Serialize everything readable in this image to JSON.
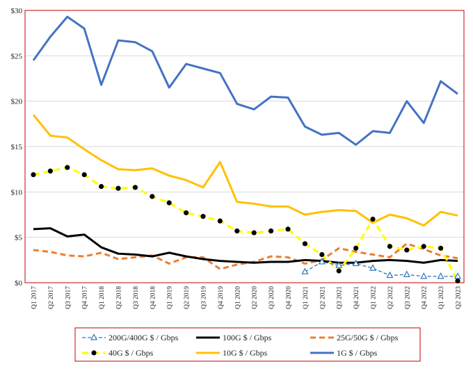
{
  "chart_data": {
    "type": "line",
    "title": "",
    "xlabel": "",
    "ylabel": "",
    "ylim": [
      0,
      30
    ],
    "y_ticks": [
      "$0",
      "$5",
      "$10",
      "$15",
      "$20",
      "$25",
      "$30"
    ],
    "grid": "horizontal",
    "legend_position": "bottom",
    "categories": [
      "Q1 2017",
      "Q2 2017",
      "Q3 2017",
      "Q4 2017",
      "Q1 2018",
      "Q2 2018",
      "Q3 2018",
      "Q4 2018",
      "Q1 2019",
      "Q2 2019",
      "Q3 2019",
      "Q4 2019",
      "Q1 2020",
      "Q2 2020",
      "Q3 2020",
      "Q4 2020",
      "Q1 2021",
      "Q2 2021",
      "Q3 2021",
      "Q4 2021",
      "Q1 2022",
      "Q2 2022",
      "Q3 2022",
      "Q4 2022",
      "Q1 2023",
      "Q2 2023"
    ],
    "series": [
      {
        "name": "200G/400G $ / Gbps",
        "color": "#2e75b6",
        "style": "dashed-triangle",
        "values": [
          null,
          null,
          null,
          null,
          null,
          null,
          null,
          null,
          null,
          null,
          null,
          null,
          null,
          null,
          null,
          null,
          1.2,
          2.3,
          1.9,
          2.1,
          1.6,
          0.8,
          0.9,
          0.7,
          0.7,
          0.7
        ]
      },
      {
        "name": "100G $ / Gbps",
        "color": "#000000",
        "style": "solid",
        "values": [
          5.9,
          6.0,
          5.1,
          5.3,
          3.9,
          3.2,
          3.1,
          2.9,
          3.3,
          2.9,
          2.6,
          2.4,
          2.3,
          2.2,
          2.3,
          2.3,
          2.5,
          2.4,
          2.2,
          2.2,
          2.4,
          2.5,
          2.4,
          2.2,
          2.5,
          2.4
        ]
      },
      {
        "name": "25G/50G $ / Gbps",
        "color": "#ed7d31",
        "style": "dashed",
        "values": [
          3.6,
          3.4,
          3.0,
          2.9,
          3.3,
          2.6,
          2.8,
          3.0,
          2.1,
          2.8,
          2.8,
          1.5,
          2.0,
          2.3,
          2.9,
          2.8,
          2.1,
          2.5,
          3.8,
          3.4,
          3.1,
          2.8,
          4.3,
          3.7,
          3.0,
          2.7
        ]
      },
      {
        "name": "40G $ / Gbps",
        "color": "#ffff00",
        "style": "dashed-dot",
        "values": [
          11.9,
          12.3,
          12.7,
          11.9,
          10.6,
          10.4,
          10.5,
          9.5,
          8.8,
          7.7,
          7.3,
          6.8,
          5.7,
          5.5,
          5.7,
          5.9,
          4.3,
          3.1,
          1.3,
          3.8,
          7.0,
          4.0,
          3.6,
          4.0,
          3.8,
          0.2
        ]
      },
      {
        "name": "10G $ / Gbps",
        "color": "#ffc000",
        "style": "solid",
        "values": [
          18.5,
          16.2,
          16.0,
          14.7,
          13.5,
          12.5,
          12.4,
          12.6,
          11.8,
          11.3,
          10.5,
          13.3,
          8.9,
          8.7,
          8.4,
          8.4,
          7.5,
          7.8,
          8.0,
          7.9,
          6.6,
          7.5,
          7.1,
          6.3,
          7.8,
          7.4
        ]
      },
      {
        "name": "1G $ / Gbps",
        "color": "#4472c4",
        "style": "solid",
        "values": [
          24.5,
          27.1,
          29.3,
          28.0,
          21.8,
          26.7,
          26.5,
          25.5,
          21.5,
          24.1,
          23.6,
          23.1,
          19.7,
          19.1,
          20.5,
          20.4,
          17.2,
          16.3,
          16.5,
          15.2,
          16.7,
          16.5,
          20.0,
          17.6,
          22.2,
          20.8
        ]
      }
    ]
  }
}
